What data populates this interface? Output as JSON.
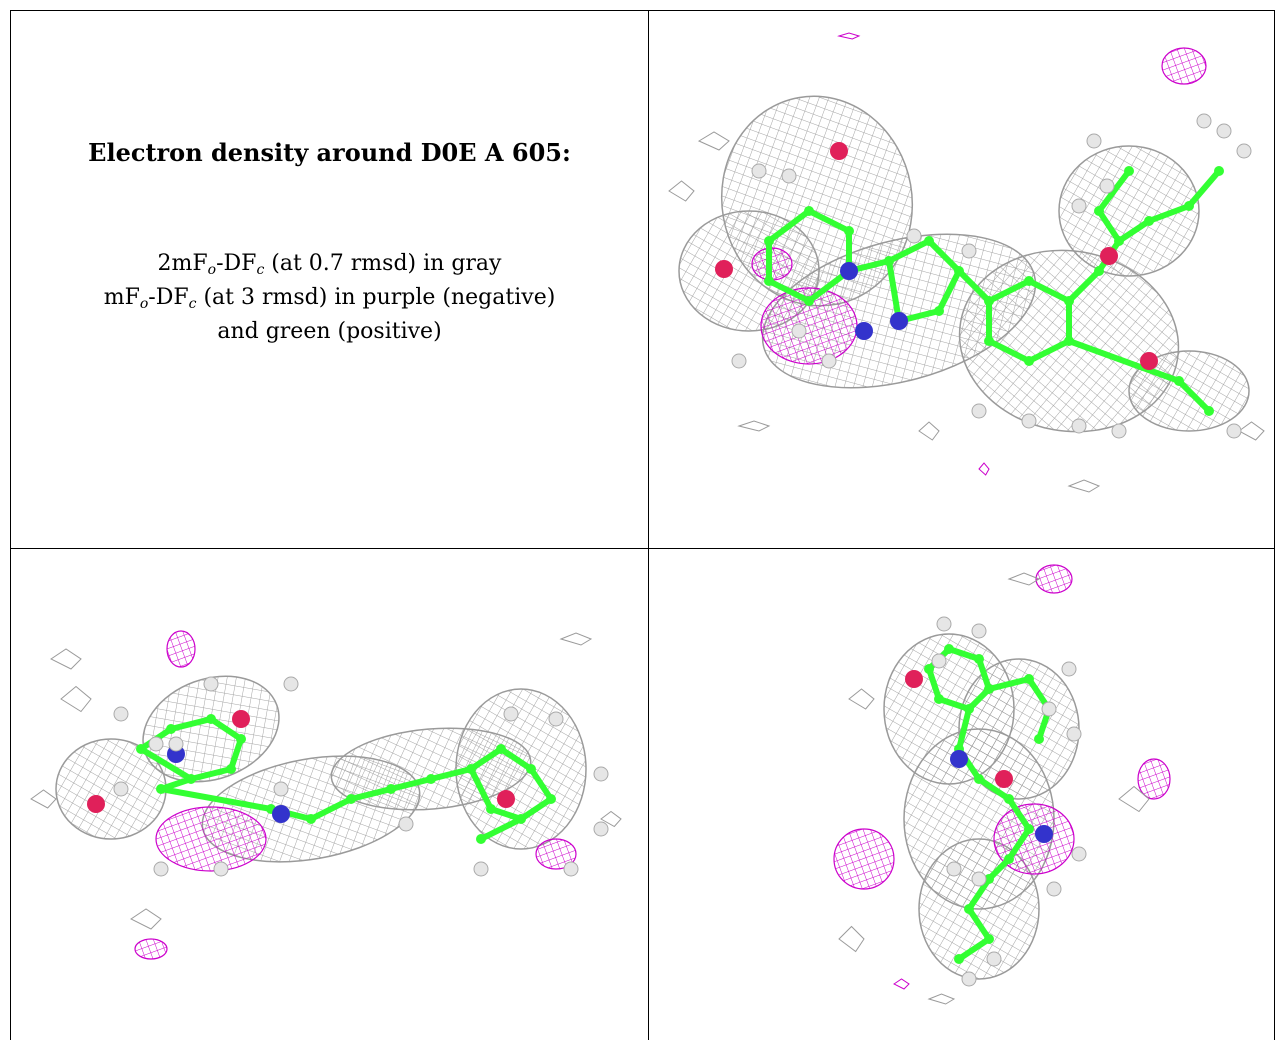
{
  "caption": {
    "title": "Electron density around D0E A 605:",
    "map1_prefix": "2mF",
    "map1_sub_o": "o",
    "map1_mid": "-DF",
    "map1_sub_c": "c",
    "map1_suffix": " (at 0.7 rmsd) in gray",
    "map2_prefix": "mF",
    "map2_sub_o": "o",
    "map2_mid": "-DF",
    "map2_sub_c": "c",
    "map2_suffix": " (at 3 rmsd) in purple (negative)",
    "line3": "and green (positive)"
  },
  "colors": {
    "density_mesh": "#9a9a9a",
    "negative_density": "#cc00cc",
    "carbon": "#33ff33",
    "nitrogen": "#3333cc",
    "oxygen": "#e0205a",
    "hydrogen": "#e6e6e6"
  }
}
